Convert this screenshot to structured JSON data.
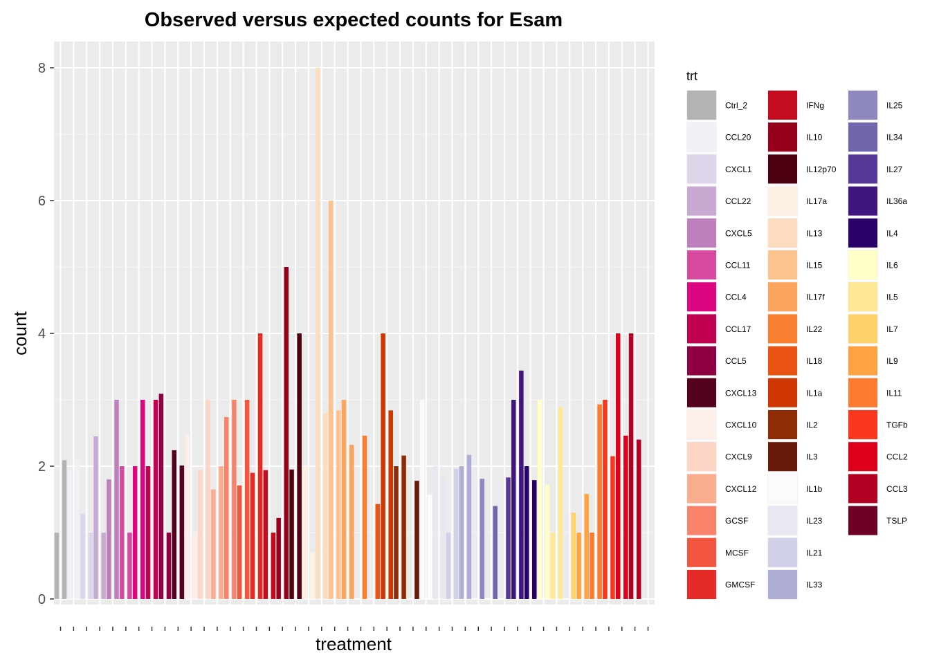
{
  "chart_data": {
    "type": "bar",
    "title": "Observed versus expected counts for Esam",
    "xlabel": "treatment",
    "ylabel": "count",
    "ylim": [
      0,
      8.4
    ],
    "y_ticks": [
      0,
      2,
      4,
      6,
      8
    ],
    "grid": true,
    "legend": {
      "title": "trt",
      "placement": "right",
      "entries": [
        {
          "label": "Ctrl_2",
          "color": "#b3b3b3"
        },
        {
          "label": "CCL20",
          "color": "#f2eff6"
        },
        {
          "label": "CXCL1",
          "color": "#ddd6ea"
        },
        {
          "label": "CCL22",
          "color": "#c8a9d2"
        },
        {
          "label": "CXCL5",
          "color": "#bd80bd"
        },
        {
          "label": "CCL11",
          "color": "#d64aa0"
        },
        {
          "label": "CCL4",
          "color": "#dd0681"
        },
        {
          "label": "CCL17",
          "color": "#c10152"
        },
        {
          "label": "CCL5",
          "color": "#8f0042"
        },
        {
          "label": "CXCL13",
          "color": "#54001f"
        },
        {
          "label": "CXCL10",
          "color": "#fdeee9"
        },
        {
          "label": "CXCL9",
          "color": "#fcd5c5"
        },
        {
          "label": "CXCL12",
          "color": "#f9ac8e"
        },
        {
          "label": "GCSF",
          "color": "#f8836a"
        },
        {
          "label": "MCSF",
          "color": "#f4553f"
        },
        {
          "label": "GMCSF",
          "color": "#e42a26"
        },
        {
          "label": "IFNg",
          "color": "#c50b1e"
        },
        {
          "label": "IL10",
          "color": "#97001b"
        },
        {
          "label": "IL12p70",
          "color": "#4d0010"
        },
        {
          "label": "IL17a",
          "color": "#fef1e3"
        },
        {
          "label": "IL13",
          "color": "#fcdcbe"
        },
        {
          "label": "IL15",
          "color": "#fdc38e"
        },
        {
          "label": "IL17f",
          "color": "#fba45e"
        },
        {
          "label": "IL22",
          "color": "#f87f30"
        },
        {
          "label": "IL18",
          "color": "#ea5413"
        },
        {
          "label": "IL1a",
          "color": "#ce3702"
        },
        {
          "label": "IL2",
          "color": "#8f2b05"
        },
        {
          "label": "IL3",
          "color": "#681a08"
        },
        {
          "label": "IL1b",
          "color": "#fbfbfd"
        },
        {
          "label": "IL23",
          "color": "#e8e7f2"
        },
        {
          "label": "IL21",
          "color": "#d0d1e6"
        },
        {
          "label": "IL33",
          "color": "#adadd5"
        },
        {
          "label": "IL25",
          "color": "#8e88c1"
        },
        {
          "label": "IL34",
          "color": "#7166ae"
        },
        {
          "label": "IL27",
          "color": "#583896"
        },
        {
          "label": "IL36a",
          "color": "#40157e"
        },
        {
          "label": "IL4",
          "color": "#290068"
        },
        {
          "label": "IL6",
          "color": "#ffffc8"
        },
        {
          "label": "IL5",
          "color": "#fee895"
        },
        {
          "label": "IL7",
          "color": "#fed36b"
        },
        {
          "label": "IL9",
          "color": "#fea33f"
        },
        {
          "label": "IL11",
          "color": "#fc7b2e"
        },
        {
          "label": "TGFb",
          "color": "#f9371f"
        },
        {
          "label": "CCL2",
          "color": "#dd001c"
        },
        {
          "label": "CCL3",
          "color": "#b10024"
        },
        {
          "label": "TSLP",
          "color": "#6e0025"
        }
      ]
    },
    "series": [
      {
        "name": "",
        "values": [
          1,
          2.09,
          1.95,
          2.09,
          1.28,
          1,
          2.45,
          1,
          1.8,
          3,
          2,
          1,
          2,
          3,
          2,
          3,
          3.09,
          1,
          2.24,
          2.01,
          2.48,
          1,
          1.94,
          3,
          1.65,
          2,
          2.74,
          3,
          1.71,
          3,
          1.9,
          4,
          1.94,
          1,
          1.22,
          5,
          1.95,
          4,
          2,
          0.7,
          8,
          2.8,
          6,
          2.84,
          3,
          2.32,
          0,
          2.46,
          0,
          1.43,
          4,
          2.84,
          2,
          2.16,
          0,
          1.78,
          3,
          1.57,
          2,
          1.84,
          1,
          1.96,
          2,
          2.17,
          0,
          1.81,
          0,
          1.4,
          0,
          1.83,
          3,
          3.44,
          2,
          1.79,
          3,
          1.72,
          1,
          2.89,
          0,
          1.3,
          1,
          1.58,
          1,
          2.93,
          3,
          2.15,
          4,
          2.46,
          4,
          2.4
        ]
      }
    ]
  }
}
